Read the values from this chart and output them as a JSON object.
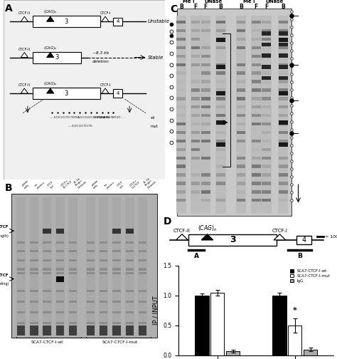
{
  "background_color": "#ffffff",
  "bar_data": {
    "amplicon_A": {
      "wt": 1.0,
      "mut": 1.05,
      "igG": 0.07
    },
    "amplicon_B": {
      "wt": 1.0,
      "mut": 0.5,
      "igG": 0.1
    },
    "errors": {
      "A_wt": 0.03,
      "A_mut": 0.05,
      "A_igG": 0.02,
      "B_wt": 0.05,
      "B_mut": 0.12,
      "B_igG": 0.025
    }
  },
  "bar_colors": {
    "wt": "#000000",
    "mut": "#ffffff",
    "igG": "#aaaaaa"
  },
  "ylim": [
    0,
    1.5
  ],
  "yticks": [
    0.0,
    0.5,
    1.0,
    1.5
  ],
  "ylabel": "IP / INPUT",
  "legend_labels": [
    "SCA7-CTCF-I-wt",
    "SCA7-CTCF-I-mut",
    "IgG"
  ]
}
